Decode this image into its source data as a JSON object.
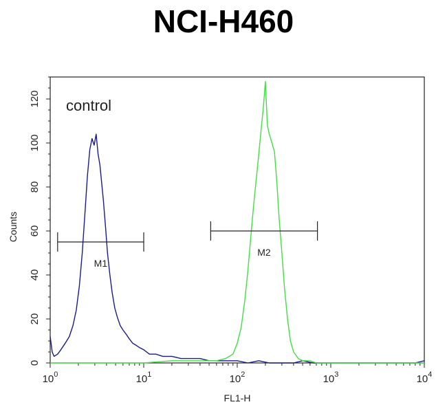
{
  "chart_data": {
    "type": "line",
    "title": "NCI-H460",
    "xlabel": "FL1-H",
    "ylabel": "Counts",
    "x_scale": "log",
    "xlim": [
      1,
      10000
    ],
    "ylim": [
      0,
      130
    ],
    "x_ticks": [
      {
        "value": 1,
        "base": "10",
        "exp": "0"
      },
      {
        "value": 10,
        "base": "10",
        "exp": "1"
      },
      {
        "value": 100,
        "base": "10",
        "exp": "2"
      },
      {
        "value": 1000,
        "base": "10",
        "exp": "3"
      },
      {
        "value": 10000,
        "base": "10",
        "exp": "4"
      }
    ],
    "y_ticks": [
      0,
      20,
      40,
      60,
      80,
      100,
      120
    ],
    "annotation": "control",
    "colors": {
      "control": "#1a1a8c",
      "sample": "#44dd44"
    },
    "series": [
      {
        "key": "control",
        "x": [
          1.0,
          1.05,
          1.1,
          1.2,
          1.3,
          1.45,
          1.6,
          1.75,
          1.9,
          2.05,
          2.2,
          2.35,
          2.5,
          2.65,
          2.8,
          2.95,
          3.1,
          3.25,
          3.4,
          3.55,
          3.7,
          3.9,
          4.1,
          4.35,
          4.6,
          4.9,
          5.2,
          5.6,
          6.0,
          6.5,
          7.0,
          7.6,
          8.3,
          9.0,
          10.0,
          11.5,
          13.5,
          16,
          20,
          25,
          32,
          40,
          50,
          65,
          80,
          100,
          130,
          170,
          220,
          300,
          400,
          500,
          650,
          800,
          1000,
          2000,
          4000,
          8000,
          10000
        ],
        "y": [
          12,
          5,
          3,
          4,
          6,
          9,
          12,
          17,
          24,
          35,
          50,
          68,
          85,
          97,
          102,
          99,
          104,
          95,
          90,
          82,
          74,
          62,
          50,
          40,
          32,
          25,
          21,
          17,
          15,
          13,
          11,
          9,
          8,
          7,
          6,
          4,
          4,
          3,
          3,
          2,
          2,
          2,
          1,
          1,
          1,
          1,
          0,
          1,
          0,
          0,
          0,
          1,
          0,
          0,
          0,
          0,
          0,
          0,
          1
        ]
      },
      {
        "key": "sample",
        "x": [
          1.0,
          2.0,
          5.0,
          10.0,
          20.0,
          40.0,
          60.0,
          75.0,
          90.0,
          100.0,
          110.0,
          120.0,
          130.0,
          140.0,
          150.0,
          160.0,
          170.0,
          180.0,
          190.0,
          200.0,
          210.0,
          220.0,
          235.0,
          250.0,
          265.0,
          280.0,
          300.0,
          320.0,
          345.0,
          370.0,
          400.0,
          450.0,
          500.0,
          600.0,
          700.0,
          1000.0,
          10000.0
        ],
        "y": [
          0,
          0,
          0,
          0,
          1,
          1,
          1,
          2,
          4,
          9,
          16,
          28,
          42,
          58,
          72,
          84,
          95,
          106,
          116,
          128,
          108,
          104,
          100,
          96,
          82,
          66,
          50,
          34,
          20,
          10,
          5,
          2,
          1,
          1,
          0,
          0,
          0
        ]
      }
    ],
    "markers": [
      {
        "label": "M1",
        "x_start": 1.2,
        "x_end": 10.0,
        "y": 55
      },
      {
        "label": "M2",
        "x_start": 52.0,
        "x_end": 720.0,
        "y": 60
      }
    ]
  }
}
